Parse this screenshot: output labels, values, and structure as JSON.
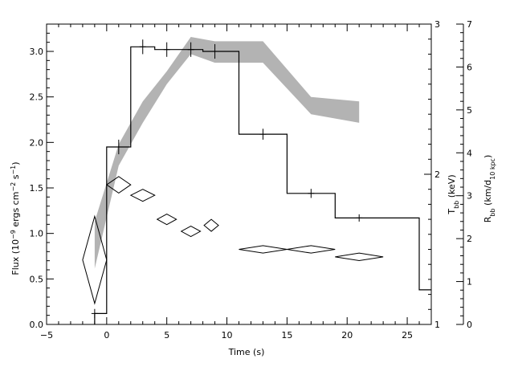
{
  "chart_data": {
    "type": "line",
    "xlabel": "Time (s)",
    "ylabel_left": "Flux (10⁻⁹ ergs cm⁻² s⁻¹)",
    "ylabel_right_inner": "T_bb (keV)",
    "ylabel_right_outer": "R_bb (km/d_10 kpc)",
    "xlim": [
      -5,
      27
    ],
    "ylim_left": [
      0,
      3.3
    ],
    "ylim_kT": [
      1,
      3
    ],
    "ylim_R": [
      0,
      7
    ],
    "x_ticks": [
      -5,
      0,
      5,
      10,
      15,
      20,
      25
    ],
    "y_ticks_left": [
      0.0,
      0.5,
      1.0,
      1.5,
      2.0,
      2.5,
      3.0
    ],
    "y_ticks_left_labels": [
      "0.0",
      "0.5",
      "1.0",
      "1.5",
      "2.0",
      "2.5",
      "3.0"
    ],
    "y_ticks_kT": [
      1,
      2,
      3
    ],
    "y_ticks_R": [
      0,
      1,
      2,
      3,
      4,
      5,
      6,
      7
    ],
    "flux_histogram": {
      "name": "Flux",
      "bins": [
        {
          "x0": -1,
          "x1": 0,
          "y": 0.12
        },
        {
          "x0": 0,
          "x1": 2,
          "y": 1.95
        },
        {
          "x0": 2,
          "x1": 4,
          "y": 3.05
        },
        {
          "x0": 4,
          "x1": 6,
          "y": 3.02
        },
        {
          "x0": 6,
          "x1": 8,
          "y": 3.02
        },
        {
          "x0": 8,
          "x1": 11,
          "y": 3.0
        },
        {
          "x0": 11,
          "x1": 15,
          "y": 2.09
        },
        {
          "x0": 15,
          "x1": 19,
          "y": 1.44
        },
        {
          "x0": 19,
          "x1": 26,
          "y": 1.17
        },
        {
          "x0": 26,
          "x1": 27,
          "y": 0.38
        }
      ],
      "errors": [
        {
          "x": -1,
          "y": 0.12,
          "err": 0.05
        },
        {
          "x": 1,
          "y": 1.95,
          "err": 0.08
        },
        {
          "x": 3,
          "y": 3.05,
          "err": 0.08
        },
        {
          "x": 5,
          "y": 3.02,
          "err": 0.08
        },
        {
          "x": 7,
          "y": 3.02,
          "err": 0.08
        },
        {
          "x": 9,
          "y": 3.0,
          "err": 0.08
        },
        {
          "x": 13,
          "y": 2.09,
          "err": 0.06
        },
        {
          "x": 17,
          "y": 1.44,
          "err": 0.05
        },
        {
          "x": 21,
          "y": 1.17,
          "err": 0.04
        }
      ]
    },
    "kT_diamonds": {
      "name": "T_bb",
      "points": [
        {
          "x": -1,
          "xerr": 1.0,
          "y": 1.43,
          "yerr": 0.29
        },
        {
          "x": 1,
          "xerr": 1.0,
          "y": 1.93,
          "yerr": 0.055
        },
        {
          "x": 3,
          "xerr": 1.0,
          "y": 1.86,
          "yerr": 0.04
        },
        {
          "x": 5,
          "xerr": 0.8,
          "y": 1.7,
          "yerr": 0.035
        },
        {
          "x": 7,
          "xerr": 0.8,
          "y": 1.62,
          "yerr": 0.035
        },
        {
          "x": 8.7,
          "xerr": 0.6,
          "y": 1.66,
          "yerr": 0.04
        },
        {
          "x": 13,
          "xerr": 2.0,
          "y": 1.5,
          "yerr": 0.025
        },
        {
          "x": 17,
          "xerr": 2.0,
          "y": 1.5,
          "yerr": 0.025
        },
        {
          "x": 21,
          "xerr": 2.0,
          "y": 1.45,
          "yerr": 0.025
        }
      ]
    },
    "R_band": {
      "name": "R_bb",
      "x": [
        -1,
        1,
        3,
        5,
        7,
        9,
        13,
        17,
        21
      ],
      "lower": [
        1.3,
        3.7,
        4.7,
        5.6,
        6.3,
        6.1,
        6.1,
        4.9,
        4.7
      ],
      "upper": [
        2.4,
        4.2,
        5.2,
        5.9,
        6.7,
        6.6,
        6.6,
        5.3,
        5.2
      ]
    }
  }
}
